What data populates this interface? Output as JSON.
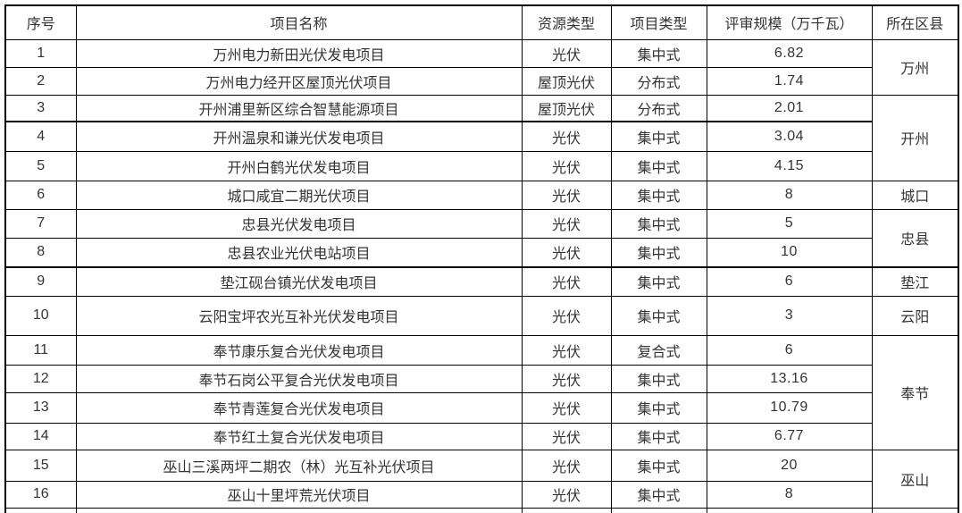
{
  "colors": {
    "border": "#000000",
    "text": "#333333",
    "background": "#ffffff"
  },
  "table": {
    "headers": [
      "序号",
      "项目名称",
      "资源类型",
      "项目类型",
      "评审规模（万千瓦）",
      "所在区县"
    ],
    "rows": [
      {
        "no": "1",
        "name": "万州电力新田光伏发电项目",
        "resource": "光伏",
        "type": "集中式",
        "scale": "6.82",
        "region": "万州",
        "region_span": 2
      },
      {
        "no": "2",
        "name": "万州电力经开区屋顶光伏项目",
        "resource": "屋顶光伏",
        "type": "分布式",
        "scale": "1.74"
      },
      {
        "no": "3",
        "name": "开州浦里新区综合智慧能源项目",
        "resource": "屋顶光伏",
        "type": "分布式",
        "scale": "2.01",
        "region": "开州",
        "region_span": 3
      },
      {
        "no": "4",
        "name": "开州温泉和谦光伏发电项目",
        "resource": "光伏",
        "type": "集中式",
        "scale": "3.04"
      },
      {
        "no": "5",
        "name": "开州白鹤光伏发电项目",
        "resource": "光伏",
        "type": "集中式",
        "scale": "4.15"
      },
      {
        "no": "6",
        "name": "城口咸宜二期光伏项目",
        "resource": "光伏",
        "type": "集中式",
        "scale": "8",
        "region": "城口",
        "region_span": 1
      },
      {
        "no": "7",
        "name": "忠县光伏发电项目",
        "resource": "光伏",
        "type": "集中式",
        "scale": "5",
        "region": "忠县",
        "region_span": 2
      },
      {
        "no": "8",
        "name": "忠县农业光伏电站项目",
        "resource": "光伏",
        "type": "集中式",
        "scale": "10"
      },
      {
        "no": "9",
        "name": "垫江砚台镇光伏发电项目",
        "resource": "光伏",
        "type": "集中式",
        "scale": "6",
        "region": "垫江",
        "region_span": 1
      },
      {
        "no": "10",
        "name": "云阳宝坪农光互补光伏发电项目",
        "resource": "光伏",
        "type": "集中式",
        "scale": "3",
        "region": "云阳",
        "region_span": 1
      },
      {
        "no": "11",
        "name": "奉节康乐复合光伏发电项目",
        "resource": "光伏",
        "type": "复合式",
        "scale": "6",
        "region": "奉节",
        "region_span": 4
      },
      {
        "no": "12",
        "name": "奉节石岗公平复合光伏发电项目",
        "resource": "光伏",
        "type": "集中式",
        "scale": "13.16"
      },
      {
        "no": "13",
        "name": "奉节青莲复合光伏发电项目",
        "resource": "光伏",
        "type": "集中式",
        "scale": "10.79"
      },
      {
        "no": "14",
        "name": "奉节红土复合光伏发电项目",
        "resource": "光伏",
        "type": "集中式",
        "scale": "6.77"
      },
      {
        "no": "15",
        "name": "巫山三溪两坪二期农（林）光互补光伏项目",
        "resource": "光伏",
        "type": "集中式",
        "scale": "20",
        "region": "巫山",
        "region_span": 2
      },
      {
        "no": "16",
        "name": "巫山十里坪荒光伏项目",
        "resource": "光伏",
        "type": "集中式",
        "scale": "8"
      }
    ]
  }
}
